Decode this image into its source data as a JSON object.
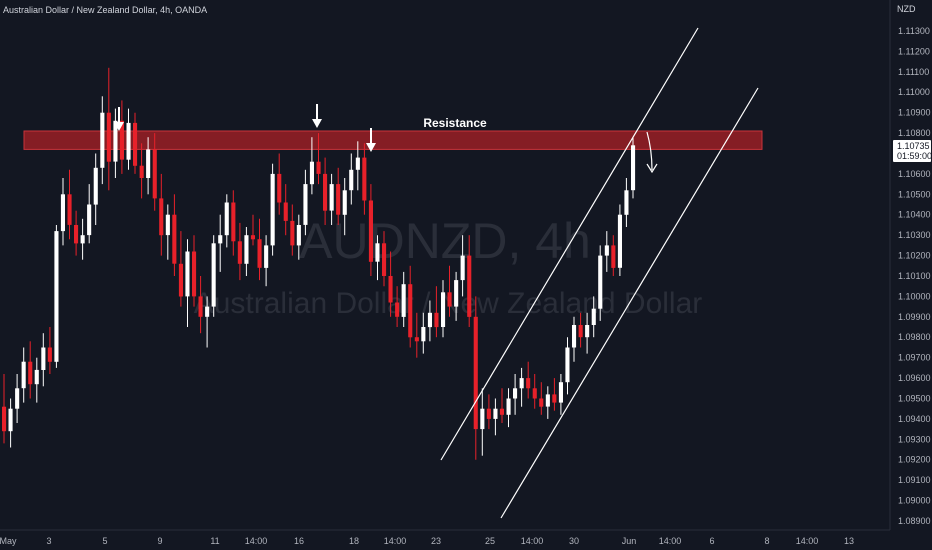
{
  "header": {
    "title": "Australian Dollar / New Zealand Dollar, 4h, OANDA"
  },
  "watermark": {
    "symbol": "AUDNZD, 4h",
    "name": "Australian Dollar / New Zealand Dollar"
  },
  "price_axis": {
    "currency": "NZD",
    "ticks": [
      "1.11300",
      "1.11200",
      "1.11100",
      "1.11000",
      "1.10900",
      "1.10800",
      "1.10600",
      "1.10500",
      "1.10400",
      "1.10300",
      "1.10200",
      "1.10100",
      "1.10000",
      "1.09900",
      "1.09800",
      "1.09700",
      "1.09600",
      "1.09500",
      "1.09400",
      "1.09300",
      "1.09200",
      "1.09100",
      "1.09000",
      "1.08900"
    ],
    "last_price": "1.10735",
    "countdown": "01:59:00"
  },
  "time_axis": {
    "ticks": [
      "May",
      "3",
      "5",
      "9",
      "11",
      "14:00",
      "16",
      "18",
      "14:00",
      "23",
      "25",
      "14:00",
      "30",
      "Jun",
      "14:00",
      "6",
      "8",
      "14:00",
      "13"
    ]
  },
  "annotations": {
    "resistance_label": "Resistance"
  },
  "colors": {
    "background": "#131722",
    "bull_candle": "#ffffff",
    "bear_candle": "#e8212a",
    "resistance_zone": "#9a1f24",
    "label_bg": "#ffffff"
  },
  "chart_data": {
    "type": "candlestick",
    "symbol": "AUDNZD",
    "timeframe": "4h",
    "ylim": [
      1.0885,
      1.1138
    ],
    "resistance_zone": [
      1.1072,
      1.1081
    ],
    "candles": [
      [
        1.0946,
        1.0962,
        1.0928,
        1.0934
      ],
      [
        1.0934,
        1.095,
        1.0926,
        1.0945
      ],
      [
        1.0945,
        1.0962,
        1.0938,
        1.0955
      ],
      [
        1.0955,
        1.0975,
        1.0948,
        1.0968
      ],
      [
        1.0968,
        1.0978,
        1.095,
        1.0957
      ],
      [
        1.0957,
        1.097,
        1.0948,
        1.0964
      ],
      [
        1.0964,
        1.0982,
        1.0956,
        1.0975
      ],
      [
        1.0975,
        1.0985,
        1.0962,
        1.0968
      ],
      [
        1.0968,
        1.1035,
        1.0965,
        1.1032
      ],
      [
        1.1032,
        1.1058,
        1.1025,
        1.105
      ],
      [
        1.105,
        1.1062,
        1.1028,
        1.1035
      ],
      [
        1.1035,
        1.1042,
        1.102,
        1.1026
      ],
      [
        1.1026,
        1.1038,
        1.1018,
        1.103
      ],
      [
        1.103,
        1.1055,
        1.1026,
        1.1045
      ],
      [
        1.1045,
        1.107,
        1.1035,
        1.1063
      ],
      [
        1.1063,
        1.1098,
        1.1055,
        1.109
      ],
      [
        1.109,
        1.1112,
        1.1052,
        1.1066
      ],
      [
        1.1066,
        1.1092,
        1.1058,
        1.1086
      ],
      [
        1.1086,
        1.1096,
        1.106,
        1.1067
      ],
      [
        1.1067,
        1.1092,
        1.1062,
        1.1085
      ],
      [
        1.1085,
        1.109,
        1.106,
        1.1064
      ],
      [
        1.1064,
        1.1075,
        1.1048,
        1.1058
      ],
      [
        1.1058,
        1.1078,
        1.105,
        1.1072
      ],
      [
        1.1072,
        1.108,
        1.1042,
        1.1048
      ],
      [
        1.1048,
        1.106,
        1.102,
        1.103
      ],
      [
        1.103,
        1.1045,
        1.1018,
        1.104
      ],
      [
        1.104,
        1.105,
        1.101,
        1.1016
      ],
      [
        1.1016,
        1.1032,
        1.0995,
        1.1
      ],
      [
        1.1,
        1.1028,
        1.0985,
        1.1022
      ],
      [
        1.1022,
        1.103,
        1.0995,
        1.1
      ],
      [
        1.1,
        1.101,
        1.0982,
        1.099
      ],
      [
        1.099,
        1.1,
        1.0975,
        1.0995
      ],
      [
        1.0995,
        1.103,
        1.099,
        1.1026
      ],
      [
        1.1026,
        1.104,
        1.1012,
        1.103
      ],
      [
        1.103,
        1.105,
        1.1024,
        1.1046
      ],
      [
        1.1046,
        1.1052,
        1.102,
        1.1027
      ],
      [
        1.1027,
        1.1036,
        1.1008,
        1.1016
      ],
      [
        1.1016,
        1.1034,
        1.101,
        1.103
      ],
      [
        1.103,
        1.104,
        1.1025,
        1.1028
      ],
      [
        1.1028,
        1.1038,
        1.1008,
        1.1014
      ],
      [
        1.1014,
        1.103,
        1.1005,
        1.1025
      ],
      [
        1.1025,
        1.1065,
        1.102,
        1.106
      ],
      [
        1.106,
        1.107,
        1.104,
        1.1046
      ],
      [
        1.1046,
        1.1055,
        1.103,
        1.1037
      ],
      [
        1.1037,
        1.1045,
        1.102,
        1.1025
      ],
      [
        1.1025,
        1.104,
        1.1018,
        1.1035
      ],
      [
        1.1035,
        1.1062,
        1.103,
        1.1055
      ],
      [
        1.1055,
        1.1078,
        1.105,
        1.1066
      ],
      [
        1.1066,
        1.108,
        1.1055,
        1.106
      ],
      [
        1.106,
        1.1068,
        1.1035,
        1.1042
      ],
      [
        1.1042,
        1.106,
        1.1035,
        1.1055
      ],
      [
        1.1055,
        1.1063,
        1.1035,
        1.104
      ],
      [
        1.104,
        1.1058,
        1.103,
        1.1052
      ],
      [
        1.1052,
        1.107,
        1.1045,
        1.1062
      ],
      [
        1.1062,
        1.1076,
        1.1052,
        1.1068
      ],
      [
        1.1068,
        1.1075,
        1.104,
        1.1047
      ],
      [
        1.1047,
        1.1055,
        1.101,
        1.1017
      ],
      [
        1.1017,
        1.103,
        1.1008,
        1.1026
      ],
      [
        1.1026,
        1.1032,
        1.1005,
        1.101
      ],
      [
        1.101,
        1.1022,
        1.099,
        1.0997
      ],
      [
        1.0997,
        1.1005,
        1.0985,
        1.099
      ],
      [
        1.099,
        1.1012,
        1.0985,
        1.1006
      ],
      [
        1.1006,
        1.1015,
        1.0975,
        1.098
      ],
      [
        1.098,
        1.0992,
        1.097,
        1.0978
      ],
      [
        1.0978,
        1.0992,
        1.0972,
        1.0985
      ],
      [
        1.0985,
        1.0998,
        1.0978,
        1.0992
      ],
      [
        1.0992,
        1.1005,
        1.098,
        1.0985
      ],
      [
        1.0985,
        1.1008,
        1.098,
        1.1002
      ],
      [
        1.1002,
        1.1015,
        1.099,
        1.0995
      ],
      [
        1.0995,
        1.1012,
        1.0988,
        1.1008
      ],
      [
        1.1008,
        1.103,
        1.1,
        1.102
      ],
      [
        1.102,
        1.103,
        1.0985,
        1.099
      ],
      [
        1.099,
        1.1,
        1.092,
        1.0935
      ],
      [
        1.0935,
        1.0955,
        1.0922,
        1.0945
      ],
      [
        1.0945,
        1.0952,
        1.0935,
        1.094
      ],
      [
        1.094,
        1.095,
        1.0932,
        1.0945
      ],
      [
        1.0945,
        1.0955,
        1.0938,
        1.0942
      ],
      [
        1.0942,
        1.0955,
        1.0936,
        1.095
      ],
      [
        1.095,
        1.0962,
        1.0942,
        1.0955
      ],
      [
        1.0955,
        1.0965,
        1.0946,
        1.096
      ],
      [
        1.096,
        1.0968,
        1.095,
        1.0955
      ],
      [
        1.0955,
        1.0962,
        1.0945,
        1.095
      ],
      [
        1.095,
        1.0958,
        1.0942,
        1.0946
      ],
      [
        1.0946,
        1.0956,
        1.094,
        1.0952
      ],
      [
        1.0952,
        1.096,
        1.0944,
        1.0948
      ],
      [
        1.0948,
        1.0962,
        1.0942,
        1.0958
      ],
      [
        1.0958,
        1.098,
        1.0952,
        1.0975
      ],
      [
        1.0975,
        1.099,
        1.0968,
        1.0986
      ],
      [
        1.0986,
        1.0992,
        1.0975,
        1.098
      ],
      [
        1.098,
        1.0992,
        1.0972,
        1.0986
      ],
      [
        1.0986,
        1.1,
        1.098,
        1.0994
      ],
      [
        1.0994,
        1.1025,
        1.0988,
        1.102
      ],
      [
        1.102,
        1.1032,
        1.1012,
        1.1025
      ],
      [
        1.1025,
        1.103,
        1.101,
        1.1014
      ],
      [
        1.1014,
        1.1045,
        1.101,
        1.104
      ],
      [
        1.104,
        1.1058,
        1.1034,
        1.1052
      ],
      [
        1.1052,
        1.1078,
        1.1048,
        1.1074
      ]
    ]
  }
}
